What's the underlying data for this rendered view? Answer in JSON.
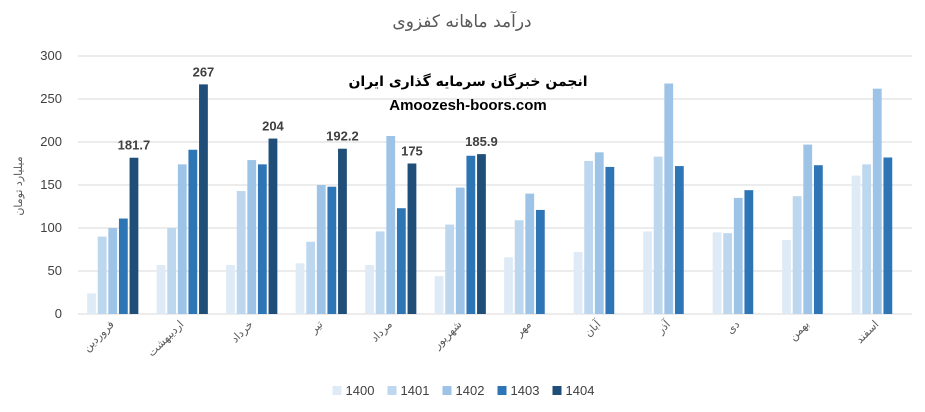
{
  "chart_data": {
    "type": "bar",
    "title": "درآمد ماهانه کفزوی",
    "xlabel": "",
    "ylabel": "میلیارد تومان",
    "ylim": [
      0,
      300
    ],
    "yticks": [
      0,
      50,
      100,
      150,
      200,
      250,
      300
    ],
    "grid": true,
    "legend_position": "bottom",
    "categories": [
      "فروردین",
      "اردیبهشت",
      "خرداد",
      "تیر",
      "مرداد",
      "شهریور",
      "مهر",
      "آبان",
      "آذر",
      "دی",
      "بهمن",
      "اسفند"
    ],
    "series": [
      {
        "name": "1400",
        "color": "#deebf7",
        "values": [
          24,
          57,
          57,
          59,
          57,
          44,
          66,
          72,
          96,
          95,
          86,
          161
        ]
      },
      {
        "name": "1401",
        "color": "#bdd7ee",
        "values": [
          90,
          100,
          143,
          84,
          96,
          104,
          109,
          178,
          183,
          94,
          137,
          174
        ]
      },
      {
        "name": "1402",
        "color": "#9dc3e6",
        "values": [
          100,
          174,
          179,
          150,
          207,
          147,
          140,
          188,
          268,
          135,
          197,
          262
        ]
      },
      {
        "name": "1403",
        "color": "#2e75b6",
        "values": [
          111,
          191,
          174,
          148,
          123,
          184,
          121,
          171,
          172,
          144,
          173,
          182
        ]
      },
      {
        "name": "1404",
        "color": "#1f4e79",
        "values": [
          181.7,
          267,
          204,
          192.2,
          175,
          185.9,
          null,
          null,
          null,
          null,
          null,
          null
        ]
      }
    ],
    "data_labels": [
      "181.7",
      "267",
      "204",
      "192.2",
      "175",
      "185.9"
    ],
    "watermark": {
      "line1": "انجمن خبرگان سرمایه گذاری ایران",
      "line2": "Amoozesh-boors.com"
    }
  }
}
